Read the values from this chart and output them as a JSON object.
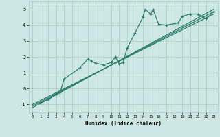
{
  "title": "",
  "xlabel": "Humidex (Indice chaleur)",
  "xlim": [
    -0.5,
    23.5
  ],
  "ylim": [
    -1.5,
    5.5
  ],
  "xticks": [
    0,
    1,
    2,
    3,
    4,
    5,
    6,
    7,
    8,
    9,
    10,
    11,
    12,
    13,
    14,
    15,
    16,
    17,
    18,
    19,
    20,
    21,
    22,
    23
  ],
  "yticks": [
    -1,
    0,
    1,
    2,
    3,
    4,
    5
  ],
  "background_color": "#cde8e4",
  "grid_color": "#b0cdc8",
  "line_color": "#2a7a6a",
  "scatter_x": [
    1,
    2,
    3,
    3.5,
    4,
    6,
    7,
    7.5,
    8,
    9,
    10,
    10.5,
    11,
    11.5,
    12,
    13,
    14,
    14.3,
    15,
    15.3,
    16,
    17,
    18,
    18.5,
    19,
    20,
    21,
    22,
    23
  ],
  "scatter_y": [
    -0.9,
    -0.7,
    -0.35,
    -0.25,
    0.6,
    1.3,
    1.85,
    1.75,
    1.6,
    1.5,
    1.65,
    2.0,
    1.55,
    1.65,
    2.55,
    3.5,
    4.5,
    5.0,
    4.7,
    5.0,
    4.05,
    4.0,
    4.1,
    4.15,
    4.55,
    4.7,
    4.7,
    4.4,
    4.85
  ],
  "line1_x": [
    0,
    23
  ],
  "line1_y": [
    -1.1,
    4.85
  ],
  "line2_x": [
    0,
    23
  ],
  "line2_y": [
    -1.0,
    4.7
  ],
  "line3_x": [
    0,
    23
  ],
  "line3_y": [
    -1.2,
    5.0
  ],
  "figsize": [
    3.2,
    2.0
  ],
  "dpi": 100
}
